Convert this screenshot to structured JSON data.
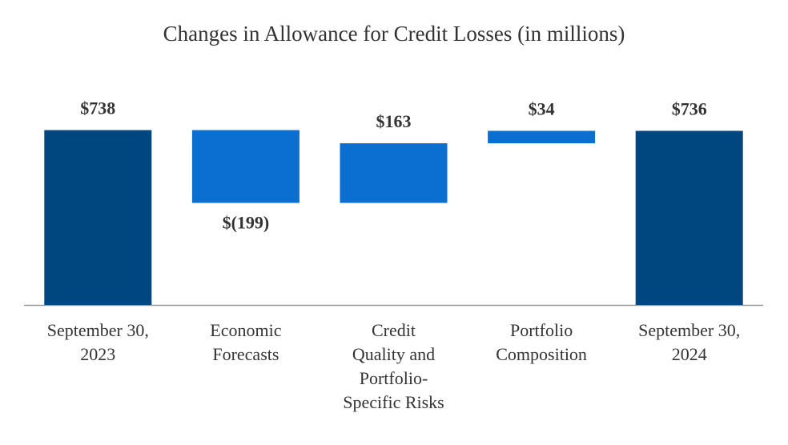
{
  "chart_data": {
    "type": "waterfall",
    "title": "Changes in Allowance for Credit Losses (in millions)",
    "categories": [
      "September 30,\n2023",
      "Economic\nForecasts",
      "Credit\nQuality and\nPortfolio-\nSpecific Risks",
      "Portfolio\nComposition",
      "September 30,\n2024"
    ],
    "values": [
      738,
      -199,
      163,
      34,
      736
    ],
    "value_labels": [
      "$738",
      "$(199)",
      "$163",
      "$34",
      "$736"
    ],
    "colors": [
      "#00467f",
      "#0a6fd1",
      "#0a6fd1",
      "#0a6fd1",
      "#00467f"
    ],
    "ylim": [
      260,
      760
    ]
  }
}
